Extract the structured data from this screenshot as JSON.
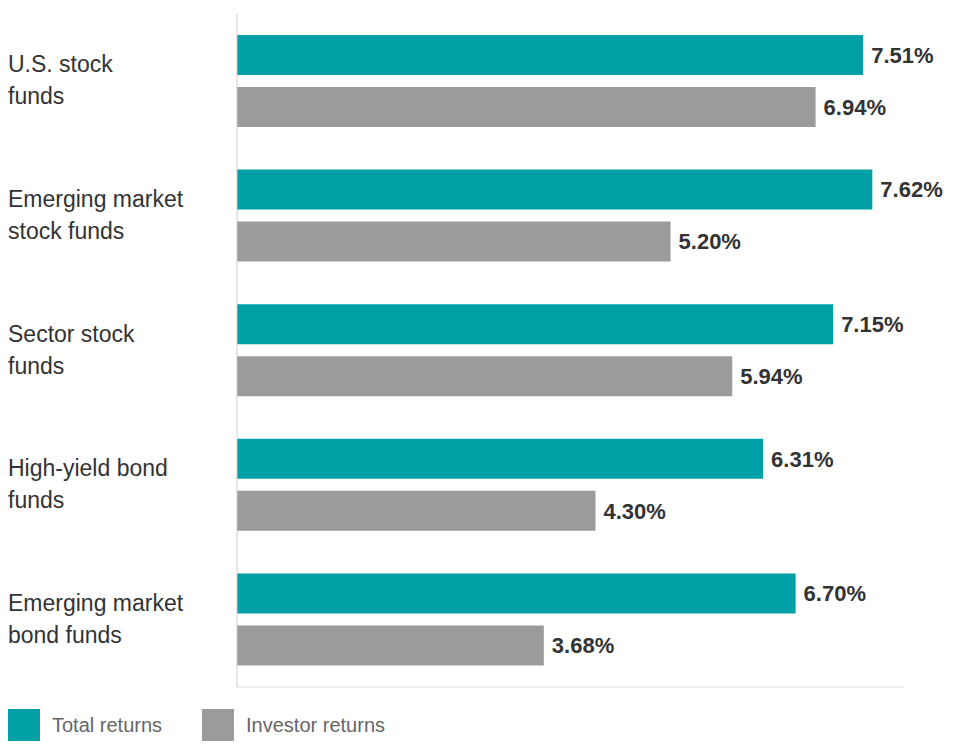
{
  "chart_data": {
    "type": "bar",
    "orientation": "horizontal",
    "categories": [
      "U.S. stock funds",
      "Emerging market stock funds",
      "Sector stock funds",
      "High-yield bond funds",
      "Emerging market bond funds"
    ],
    "series": [
      {
        "name": "Total returns",
        "color": "#00a0a6",
        "values": [
          7.51,
          7.62,
          7.15,
          6.31,
          6.7
        ],
        "value_labels": [
          "7.51%",
          "7.62%",
          "7.15%",
          "6.31%",
          "6.70%"
        ]
      },
      {
        "name": "Investor returns",
        "color": "#9b9b9b",
        "values": [
          6.94,
          5.2,
          5.94,
          4.3,
          3.68
        ],
        "value_labels": [
          "6.94%",
          "5.20%",
          "5.94%",
          "4.30%",
          "3.68%"
        ]
      }
    ],
    "xlim": [
      0,
      8
    ],
    "tick_labels": false,
    "data_labels": true,
    "grid": false,
    "legend": "bottom-left"
  }
}
